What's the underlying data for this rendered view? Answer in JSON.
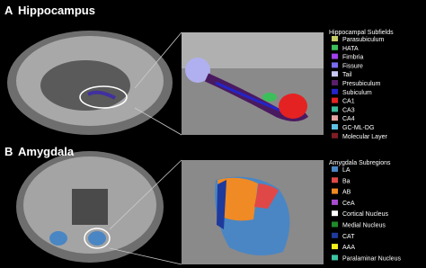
{
  "panels": [
    {
      "letter": "A",
      "title": "Hippocampus",
      "legend_title": "Hippocampal Subfields",
      "items": [
        {
          "label": "Parasubiculum",
          "color": "#c4cc6a"
        },
        {
          "label": "HATA",
          "color": "#3cbf5a"
        },
        {
          "label": "Fimbria",
          "color": "#a040ee"
        },
        {
          "label": "Fissure",
          "color": "#7a6cf0"
        },
        {
          "label": "Tail",
          "color": "#c8c8f8"
        },
        {
          "label": "Presubiculum",
          "color": "#5a1f6a"
        },
        {
          "label": "Subiculum",
          "color": "#2424c8"
        },
        {
          "label": "CA1",
          "color": "#e52222"
        },
        {
          "label": "CA3",
          "color": "#3cb89a"
        },
        {
          "label": "CA4",
          "color": "#e4a4a4"
        },
        {
          "label": "GC-ML-DG",
          "color": "#5cc0e4"
        },
        {
          "label": "Molecular Layer",
          "color": "#7e1c24"
        }
      ]
    },
    {
      "letter": "B",
      "title": "Amygdala",
      "legend_title": "Amygdala Subregions",
      "items": [
        {
          "label": "LA",
          "color": "#4a86c4"
        },
        {
          "label": "Ba",
          "color": "#e04848"
        },
        {
          "label": "AB",
          "color": "#f08a24"
        },
        {
          "label": "CeA",
          "color": "#a84cd0"
        },
        {
          "label": "Cortical Nucleus",
          "color": "#ffffff"
        },
        {
          "label": "Medial Nucleus",
          "color": "#1f8a2a"
        },
        {
          "label": "CAT",
          "color": "#1e3a9c"
        },
        {
          "label": "AAA",
          "color": "#f4f020"
        },
        {
          "label": "Paralaminar Nucleus",
          "color": "#3cc4a4"
        }
      ]
    }
  ]
}
